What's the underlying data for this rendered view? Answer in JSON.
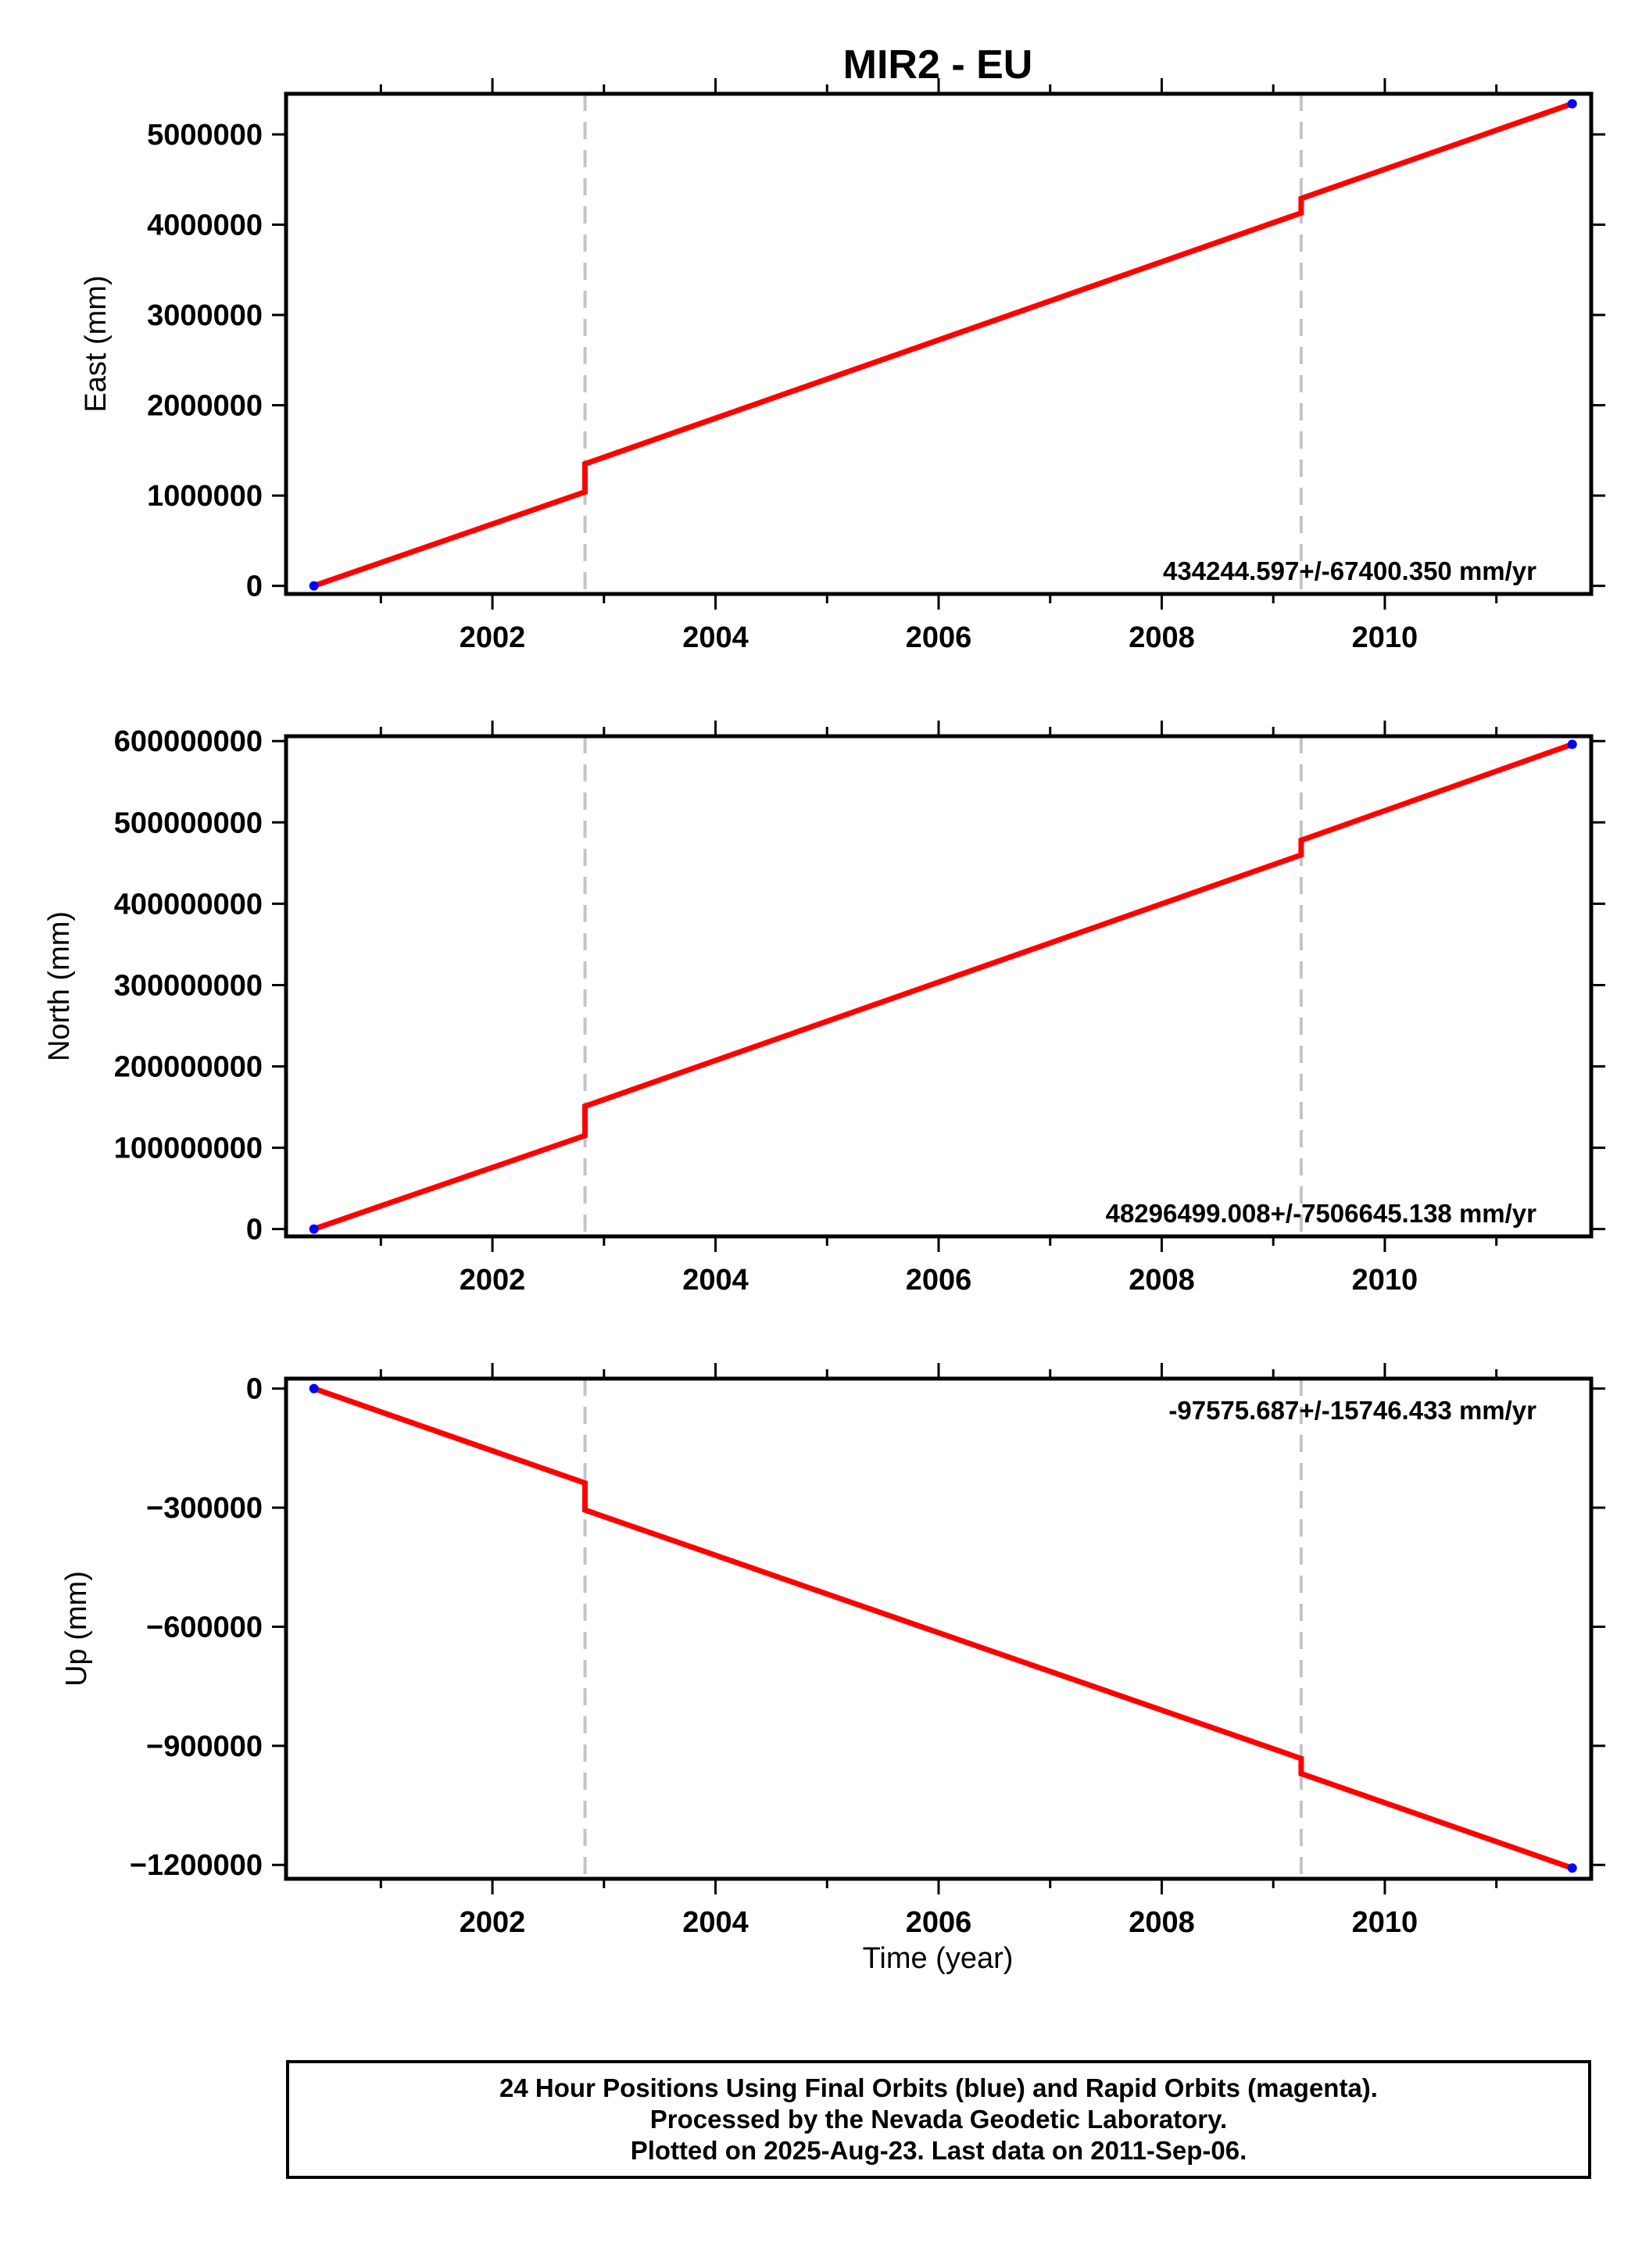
{
  "chart_data": {
    "title": "MIR2 - EU",
    "type": "line",
    "xlabel": "Time (year)",
    "xlim": [
      2000.15,
      2011.85
    ],
    "xticks": [
      "2002",
      "2004",
      "2006",
      "2008",
      "2010"
    ],
    "xtick_values": [
      2002,
      2004,
      2006,
      2008,
      2010
    ],
    "grid": false,
    "offset_lines_x": [
      2002.83,
      2009.25
    ],
    "panels": [
      {
        "name": "east",
        "ylabel": "East (mm)",
        "ylim": [
          -90000,
          5450000
        ],
        "yticks": [
          "0",
          "1000000",
          "2000000",
          "3000000",
          "4000000",
          "5000000"
        ],
        "ytick_values": [
          0,
          1000000,
          2000000,
          3000000,
          4000000,
          5000000
        ],
        "rate_text": "434244.597+/-67400.350 mm/yr",
        "rate_position": "bottom-right",
        "series": [
          {
            "name": "model",
            "color": "#ff0000",
            "x": [
              2000.4,
              2002.83,
              2002.83,
              2009.25,
              2009.25,
              2011.68
            ],
            "y": [
              0,
              1040000,
              1350000,
              4130000,
              4290000,
              5340000
            ]
          },
          {
            "name": "final",
            "color": "#0000ff",
            "x": [
              2000.4,
              2011.68
            ],
            "y": [
              0,
              5340000
            ]
          }
        ]
      },
      {
        "name": "north",
        "ylabel": "North (mm)",
        "ylim": [
          -9000000,
          606000000
        ],
        "yticks": [
          "0",
          "100000000",
          "200000000",
          "300000000",
          "400000000",
          "500000000",
          "600000000"
        ],
        "ytick_values": [
          0,
          100000000,
          200000000,
          300000000,
          400000000,
          500000000,
          600000000
        ],
        "rate_text": "48296499.008+/-7506645.138 mm/yr",
        "rate_position": "bottom-right",
        "series": [
          {
            "name": "model",
            "color": "#ff0000",
            "x": [
              2000.4,
              2002.83,
              2002.83,
              2009.25,
              2009.25,
              2011.68
            ],
            "y": [
              0,
              115000000,
              151000000,
              460000000,
              478000000,
              596000000
            ]
          },
          {
            "name": "final",
            "color": "#0000ff",
            "x": [
              2000.4,
              2011.68
            ],
            "y": [
              0,
              596000000
            ]
          }
        ]
      },
      {
        "name": "up",
        "ylabel": "Up (mm)",
        "ylim": [
          -1235000,
          25000
        ],
        "yticks": [
          "0",
          "−300000",
          "−600000",
          "−900000",
          "−1200000"
        ],
        "ytick_values": [
          0,
          -300000,
          -600000,
          -900000,
          -1200000
        ],
        "rate_text": "-97575.687+/-15746.433 mm/yr",
        "rate_position": "top-right",
        "series": [
          {
            "name": "model",
            "color": "#ff0000",
            "x": [
              2000.4,
              2002.83,
              2002.83,
              2009.25,
              2009.25,
              2011.68
            ],
            "y": [
              0,
              -238000,
              -306000,
              -932000,
              -970000,
              -1208000
            ]
          },
          {
            "name": "final",
            "color": "#0000ff",
            "x": [
              2000.4,
              2011.68
            ],
            "y": [
              0,
              -1208000
            ]
          }
        ]
      }
    ]
  },
  "footer": {
    "line1": "24 Hour Positions Using Final Orbits (blue) and Rapid Orbits (magenta).",
    "line2": "Processed by the Nevada Geodetic Laboratory.",
    "line3": "Plotted on 2025-Aug-23. Last data on 2011-Sep-06."
  }
}
